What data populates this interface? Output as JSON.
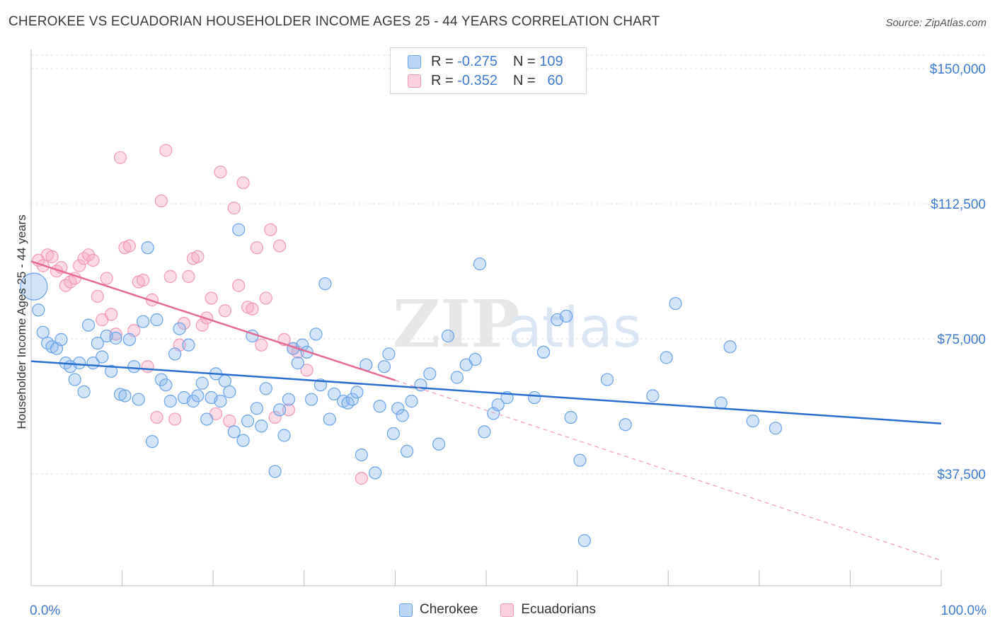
{
  "title": "CHEROKEE VS ECUADORIAN HOUSEHOLDER INCOME AGES 25 - 44 YEARS CORRELATION CHART",
  "source": "Source: ZipAtlas.com",
  "watermark": {
    "zip": "ZIP",
    "atlas": "atlas"
  },
  "legend": {
    "r_label": "R =",
    "n_label": "N =",
    "rows": [
      {
        "series": "Cherokee",
        "r": "-0.275",
        "n": "109"
      },
      {
        "series": "Ecuadorians",
        "r": "-0.352",
        "n": "60"
      }
    ]
  },
  "chart_data": {
    "type": "scatter",
    "xlabel": "",
    "ylabel": "Householder Income Ages 25 - 44 years",
    "xlim": [
      0,
      100
    ],
    "ylim": [
      13000,
      157500
    ],
    "x_tick_labels": [
      "0.0%",
      "100.0%"
    ],
    "y_ticks": [
      37500,
      75000,
      112500,
      150000
    ],
    "y_tick_labels": [
      "$37,500",
      "$75,000",
      "$112,500",
      "$150,000"
    ],
    "grid": true,
    "colors": {
      "Cherokee": "#6aa3e8",
      "Ecuadorians": "#f19ab6",
      "Cherokee_line": "#2a6fd0",
      "Ecuadorians_line": "#e46a94"
    },
    "series": [
      {
        "name": "Cherokee",
        "trend": {
          "x0": 0,
          "y0": 68800,
          "x1": 100,
          "y1": 51500
        },
        "points": [
          [
            0.3,
            89500
          ],
          [
            0.8,
            83000
          ],
          [
            1.3,
            76800
          ],
          [
            1.8,
            73800
          ],
          [
            2.3,
            72800
          ],
          [
            2.8,
            72300
          ],
          [
            3.3,
            74800
          ],
          [
            3.8,
            68300
          ],
          [
            4.3,
            67300
          ],
          [
            4.8,
            63700
          ],
          [
            5.3,
            68300
          ],
          [
            5.8,
            60300
          ],
          [
            6.3,
            78800
          ],
          [
            6.8,
            68300
          ],
          [
            7.3,
            73800
          ],
          [
            7.8,
            70000
          ],
          [
            8.3,
            75800
          ],
          [
            8.8,
            66000
          ],
          [
            9.3,
            75200
          ],
          [
            9.8,
            59600
          ],
          [
            10.3,
            59200
          ],
          [
            10.8,
            74800
          ],
          [
            11.3,
            67300
          ],
          [
            11.8,
            58200
          ],
          [
            12.3,
            79800
          ],
          [
            12.8,
            100300
          ],
          [
            13.3,
            46500
          ],
          [
            13.8,
            80300
          ],
          [
            14.3,
            63700
          ],
          [
            14.8,
            62200
          ],
          [
            15.3,
            57700
          ],
          [
            15.8,
            70800
          ],
          [
            16.3,
            77800
          ],
          [
            16.8,
            58700
          ],
          [
            17.3,
            73300
          ],
          [
            17.8,
            57700
          ],
          [
            18.3,
            59200
          ],
          [
            18.8,
            62700
          ],
          [
            19.3,
            52700
          ],
          [
            19.8,
            58700
          ],
          [
            20.3,
            65300
          ],
          [
            20.8,
            57700
          ],
          [
            21.3,
            63300
          ],
          [
            21.8,
            60300
          ],
          [
            22.3,
            49200
          ],
          [
            22.8,
            105300
          ],
          [
            23.3,
            46800
          ],
          [
            23.8,
            52200
          ],
          [
            24.3,
            75800
          ],
          [
            24.8,
            55700
          ],
          [
            25.3,
            50800
          ],
          [
            25.8,
            61200
          ],
          [
            26.8,
            38200
          ],
          [
            27.3,
            55300
          ],
          [
            27.8,
            48200
          ],
          [
            28.3,
            58200
          ],
          [
            28.8,
            72300
          ],
          [
            29.3,
            68300
          ],
          [
            29.8,
            73300
          ],
          [
            30.3,
            71300
          ],
          [
            30.8,
            58200
          ],
          [
            31.3,
            76300
          ],
          [
            31.8,
            62200
          ],
          [
            32.3,
            90300
          ],
          [
            32.8,
            52700
          ],
          [
            33.3,
            59700
          ],
          [
            34.3,
            57700
          ],
          [
            34.8,
            57200
          ],
          [
            35.3,
            58200
          ],
          [
            35.8,
            60200
          ],
          [
            36.3,
            42800
          ],
          [
            36.8,
            67800
          ],
          [
            37.8,
            37800
          ],
          [
            38.3,
            56300
          ],
          [
            38.8,
            67300
          ],
          [
            39.3,
            70800
          ],
          [
            39.8,
            48700
          ],
          [
            40.3,
            55700
          ],
          [
            40.8,
            53700
          ],
          [
            41.3,
            43800
          ],
          [
            41.8,
            57700
          ],
          [
            42.8,
            62200
          ],
          [
            43.8,
            65300
          ],
          [
            44.8,
            45800
          ],
          [
            45.8,
            75800
          ],
          [
            46.8,
            64300
          ],
          [
            47.8,
            67800
          ],
          [
            48.8,
            69300
          ],
          [
            49.3,
            95800
          ],
          [
            49.8,
            49200
          ],
          [
            50.8,
            54300
          ],
          [
            51.3,
            56700
          ],
          [
            52.3,
            58700
          ],
          [
            55.3,
            58700
          ],
          [
            56.3,
            71300
          ],
          [
            57.8,
            80300
          ],
          [
            58.8,
            81300
          ],
          [
            59.3,
            53200
          ],
          [
            60.3,
            41300
          ],
          [
            60.8,
            19000
          ],
          [
            63.3,
            63700
          ],
          [
            65.3,
            51200
          ],
          [
            68.3,
            59200
          ],
          [
            69.8,
            69800
          ],
          [
            70.8,
            84800
          ],
          [
            75.8,
            57200
          ],
          [
            76.8,
            72800
          ],
          [
            79.3,
            52200
          ],
          [
            81.8,
            50200
          ]
        ]
      },
      {
        "name": "Ecuadorians",
        "trend": {
          "x0": 0,
          "y0": 96500,
          "x1": 40,
          "y1": 63500
        },
        "trend_extension": {
          "x0": 40,
          "y0": 63500,
          "x1": 100,
          "y1": 13500
        },
        "points": [
          [
            0.8,
            96800
          ],
          [
            1.3,
            95300
          ],
          [
            1.8,
            98300
          ],
          [
            2.3,
            97800
          ],
          [
            2.8,
            93800
          ],
          [
            3.3,
            94800
          ],
          [
            3.8,
            89800
          ],
          [
            4.3,
            90800
          ],
          [
            4.8,
            91800
          ],
          [
            5.3,
            95300
          ],
          [
            5.8,
            97300
          ],
          [
            6.3,
            98300
          ],
          [
            6.8,
            96800
          ],
          [
            7.3,
            86800
          ],
          [
            7.8,
            80300
          ],
          [
            8.3,
            91800
          ],
          [
            8.8,
            81800
          ],
          [
            9.3,
            76300
          ],
          [
            9.8,
            125300
          ],
          [
            10.3,
            100300
          ],
          [
            10.8,
            100800
          ],
          [
            11.3,
            77300
          ],
          [
            11.8,
            90800
          ],
          [
            12.3,
            91300
          ],
          [
            12.8,
            67300
          ],
          [
            13.3,
            85800
          ],
          [
            13.8,
            53200
          ],
          [
            14.3,
            113300
          ],
          [
            14.8,
            127300
          ],
          [
            15.3,
            92300
          ],
          [
            15.8,
            52700
          ],
          [
            16.3,
            73300
          ],
          [
            16.8,
            79300
          ],
          [
            17.3,
            92300
          ],
          [
            17.8,
            97300
          ],
          [
            18.3,
            97800
          ],
          [
            18.8,
            78800
          ],
          [
            19.3,
            80800
          ],
          [
            19.8,
            86300
          ],
          [
            20.3,
            54200
          ],
          [
            20.8,
            121300
          ],
          [
            21.3,
            82800
          ],
          [
            21.8,
            52200
          ],
          [
            22.3,
            111300
          ],
          [
            22.8,
            89800
          ],
          [
            23.3,
            118300
          ],
          [
            23.8,
            83800
          ],
          [
            24.3,
            83300
          ],
          [
            24.8,
            100300
          ],
          [
            25.3,
            73300
          ],
          [
            25.8,
            86300
          ],
          [
            26.3,
            105300
          ],
          [
            26.8,
            53200
          ],
          [
            27.3,
            100800
          ],
          [
            27.8,
            74800
          ],
          [
            28.3,
            55300
          ],
          [
            28.8,
            72300
          ],
          [
            29.3,
            71300
          ],
          [
            30.3,
            66300
          ],
          [
            36.3,
            36300
          ]
        ]
      }
    ]
  }
}
